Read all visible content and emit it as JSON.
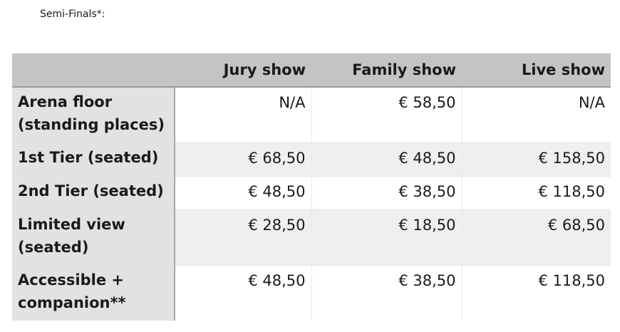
{
  "title": "Semi-Finals*:",
  "table": {
    "headers": [
      "",
      "Jury show",
      "Family show",
      "Live show"
    ],
    "rows": [
      {
        "label": "Arena floor (standing places)",
        "values": [
          "N/A",
          "€ 58,50",
          "N/A"
        ]
      },
      {
        "label": "1st Tier (seated)",
        "values": [
          "€ 68,50",
          "€ 48,50",
          "€ 158,50"
        ]
      },
      {
        "label": "2nd Tier (seated)",
        "values": [
          "€ 48,50",
          "€ 38,50",
          "€ 118,50"
        ]
      },
      {
        "label": "Limited view (seated)",
        "values": [
          "€ 28,50",
          "€ 18,50",
          "€ 68,50"
        ]
      },
      {
        "label": "Accessible + companion**",
        "values": [
          "€ 48,50",
          "€ 38,50",
          "€ 118,50"
        ]
      }
    ]
  }
}
